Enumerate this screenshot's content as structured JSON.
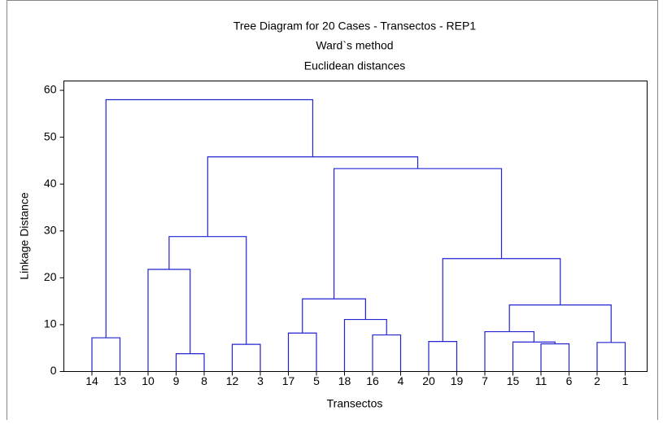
{
  "chart_data": {
    "type": "dendrogram",
    "title": "Tree Diagram for 20 Cases - Transectos - REP1",
    "subtitle": "Ward`s method",
    "subtitle2": "Euclidean distances",
    "xlabel": "Transectos",
    "ylabel": "Linkage Distance",
    "color": "#2323d0",
    "ylim": [
      0,
      62
    ],
    "yticks": [
      0,
      10,
      20,
      30,
      40,
      50,
      60
    ],
    "tree": {
      "height": 58,
      "children": [
        {
          "height": 7.2,
          "children": [
            {
              "label": "14"
            },
            {
              "label": "13"
            }
          ]
        },
        {
          "height": 45.8,
          "children": [
            {
              "height": 28.8,
              "children": [
                {
                  "height": 21.8,
                  "children": [
                    {
                      "label": "10"
                    },
                    {
                      "height": 3.8,
                      "children": [
                        {
                          "label": "9"
                        },
                        {
                          "label": "8"
                        }
                      ]
                    }
                  ]
                },
                {
                  "height": 5.8,
                  "children": [
                    {
                      "label": "12"
                    },
                    {
                      "label": "3"
                    }
                  ]
                }
              ]
            },
            {
              "height": 43.3,
              "children": [
                {
                  "height": 15.5,
                  "children": [
                    {
                      "height": 8.2,
                      "children": [
                        {
                          "label": "17"
                        },
                        {
                          "label": "5"
                        }
                      ]
                    },
                    {
                      "height": 11.1,
                      "children": [
                        {
                          "label": "18"
                        },
                        {
                          "height": 7.8,
                          "children": [
                            {
                              "label": "16"
                            },
                            {
                              "label": "4"
                            }
                          ]
                        }
                      ]
                    }
                  ]
                },
                {
                  "height": 24.1,
                  "children": [
                    {
                      "height": 6.4,
                      "children": [
                        {
                          "label": "20"
                        },
                        {
                          "label": "19"
                        }
                      ]
                    },
                    {
                      "height": 14.2,
                      "children": [
                        {
                          "height": 8.5,
                          "children": [
                            {
                              "label": "7"
                            },
                            {
                              "height": 6.3,
                              "children": [
                                {
                                  "label": "15"
                                },
                                {
                                  "height": 5.9,
                                  "children": [
                                    {
                                      "label": "11"
                                    },
                                    {
                                      "label": "6"
                                    }
                                  ]
                                }
                              ]
                            }
                          ]
                        },
                        {
                          "height": 6.2,
                          "children": [
                            {
                              "label": "2"
                            },
                            {
                              "label": "1"
                            }
                          ]
                        }
                      ]
                    }
                  ]
                }
              ]
            }
          ]
        }
      ]
    }
  }
}
